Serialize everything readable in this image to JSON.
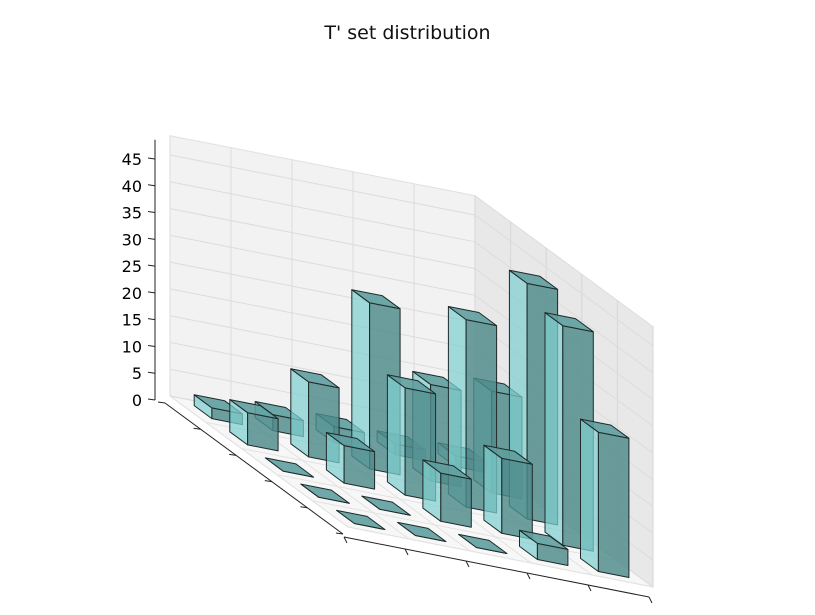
{
  "chart_data": {
    "type": "bar3d",
    "title": "T' set distribution",
    "xlabel": "",
    "ylabel": "",
    "zlabel": "",
    "zlim": [
      0,
      45
    ],
    "z_ticks": [
      "0",
      "5",
      "10",
      "15",
      "20",
      "25",
      "30",
      "35",
      "40",
      "45"
    ],
    "grid": true,
    "bar_color": "#7fcfcf",
    "x": [
      0,
      1,
      2,
      3,
      4
    ],
    "y": [
      0,
      1,
      2,
      3,
      4
    ],
    "values": [
      [
        2,
        3,
        3,
        2,
        2
      ],
      [
        6,
        14,
        31,
        18,
        19
      ],
      [
        0,
        7,
        20,
        35,
        44
      ],
      [
        0,
        0,
        9,
        14,
        41
      ],
      [
        0,
        0,
        0,
        3,
        26
      ]
    ]
  }
}
